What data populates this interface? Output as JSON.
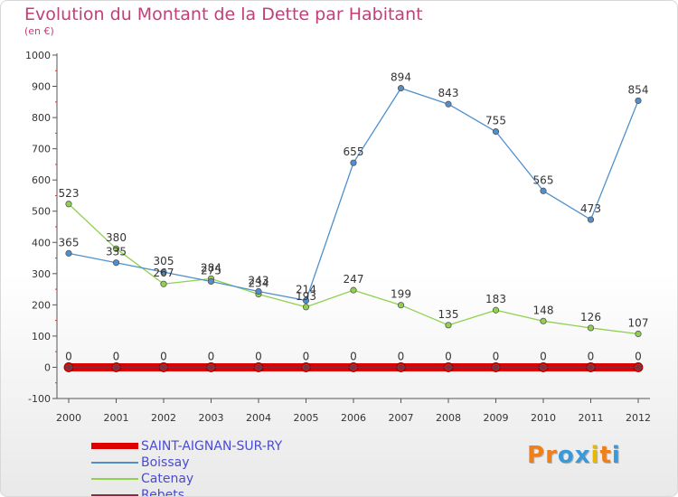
{
  "title": "Evolution du Montant de la Dette par Habitant",
  "subtitle": "(en €)",
  "brand": "Proxiti",
  "chart_data": {
    "type": "line",
    "x": [
      "2000",
      "2001",
      "2002",
      "2003",
      "2004",
      "2005",
      "2006",
      "2007",
      "2008",
      "2009",
      "2010",
      "2011",
      "2012"
    ],
    "ylim": [
      -100,
      1000
    ],
    "yticks": [
      -100,
      0,
      100,
      200,
      300,
      400,
      500,
      600,
      700,
      800,
      900,
      1000
    ],
    "grid": false,
    "legend_position": "bottom-left",
    "series": [
      {
        "name": "SAINT-AIGNAN-SUR-RY",
        "color": "#dd0000",
        "values": [
          0,
          0,
          0,
          0,
          0,
          0,
          0,
          0,
          0,
          0,
          0,
          0,
          0
        ]
      },
      {
        "name": "Boissay",
        "color": "#4f8fce",
        "values": [
          365,
          335,
          305,
          275,
          243,
          214,
          655,
          894,
          843,
          755,
          565,
          473,
          854
        ]
      },
      {
        "name": "Catenay",
        "color": "#8fd14f",
        "values": [
          523,
          380,
          267,
          284,
          234,
          193,
          247,
          199,
          135,
          183,
          148,
          126,
          107
        ]
      },
      {
        "name": "Rebets",
        "color": "#8b2a3a",
        "values": [
          0,
          0,
          0,
          0,
          0,
          0,
          0,
          0,
          0,
          0,
          0,
          0,
          0
        ]
      }
    ]
  }
}
